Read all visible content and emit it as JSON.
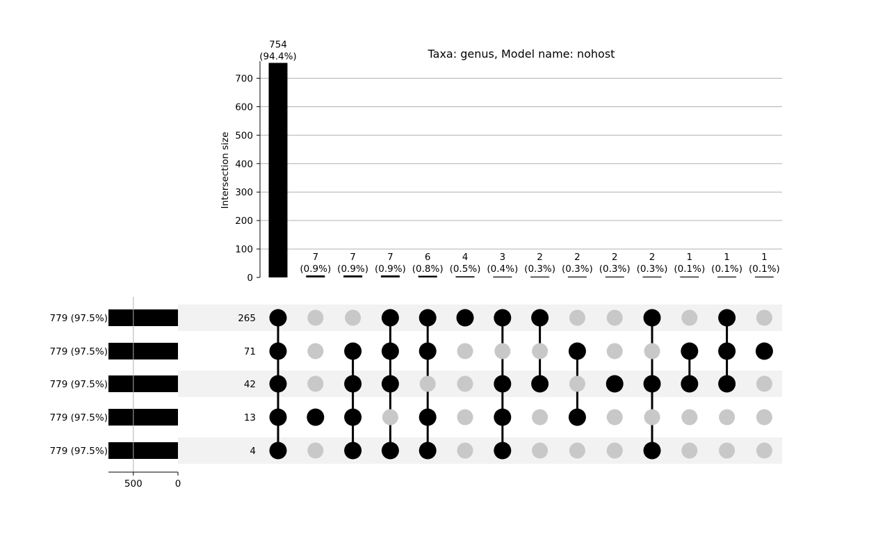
{
  "chart_data": {
    "type": "upset",
    "title": "Taxa: genus, Model name: nohost",
    "ylabel": "Intersection size",
    "ylim": [
      0,
      760
    ],
    "yticks": [
      0,
      100,
      200,
      300,
      400,
      500,
      600,
      700
    ],
    "grid": true,
    "intersections": [
      {
        "value": 754,
        "label": "754",
        "pct": "(94.4%)",
        "members": [
          0,
          1,
          2,
          3,
          4
        ]
      },
      {
        "value": 7,
        "label": "7",
        "pct": "(0.9%)",
        "members": [
          3
        ]
      },
      {
        "value": 7,
        "label": "7",
        "pct": "(0.9%)",
        "members": [
          1,
          2,
          3,
          4
        ]
      },
      {
        "value": 7,
        "label": "7",
        "pct": "(0.9%)",
        "members": [
          0,
          1,
          2,
          4
        ]
      },
      {
        "value": 6,
        "label": "6",
        "pct": "(0.8%)",
        "members": [
          0,
          1,
          3,
          4
        ]
      },
      {
        "value": 4,
        "label": "4",
        "pct": "(0.5%)",
        "members": [
          0
        ]
      },
      {
        "value": 3,
        "label": "3",
        "pct": "(0.4%)",
        "members": [
          0,
          2,
          3,
          4
        ]
      },
      {
        "value": 2,
        "label": "2",
        "pct": "(0.3%)",
        "members": [
          0,
          2
        ]
      },
      {
        "value": 2,
        "label": "2",
        "pct": "(0.3%)",
        "members": [
          1,
          3
        ]
      },
      {
        "value": 2,
        "label": "2",
        "pct": "(0.3%)",
        "members": [
          2
        ]
      },
      {
        "value": 2,
        "label": "2",
        "pct": "(0.3%)",
        "members": [
          0,
          2,
          4
        ]
      },
      {
        "value": 1,
        "label": "1",
        "pct": "(0.1%)",
        "members": [
          1,
          2
        ]
      },
      {
        "value": 1,
        "label": "1",
        "pct": "(0.1%)",
        "members": [
          0,
          1,
          2
        ]
      },
      {
        "value": 1,
        "label": "1",
        "pct": "(0.1%)",
        "members": [
          1
        ]
      }
    ],
    "sets": [
      {
        "name": "265",
        "size": 779,
        "size_label": "779 (97.5%)"
      },
      {
        "name": "71",
        "size": 779,
        "size_label": "779 (97.5%)"
      },
      {
        "name": "42",
        "size": 779,
        "size_label": "779 (97.5%)"
      },
      {
        "name": "13",
        "size": 779,
        "size_label": "779 (97.5%)"
      },
      {
        "name": "4",
        "size": 779,
        "size_label": "779 (97.5%)"
      }
    ],
    "set_size_xlim": [
      0,
      779
    ],
    "set_size_ticks": [
      500,
      0
    ],
    "colors": {
      "bar": "#000000",
      "dot_active": "#000000",
      "dot_inactive": "#c8c8c8",
      "stripe": "#f2f2f2",
      "grid": "#b0b0b0"
    }
  }
}
